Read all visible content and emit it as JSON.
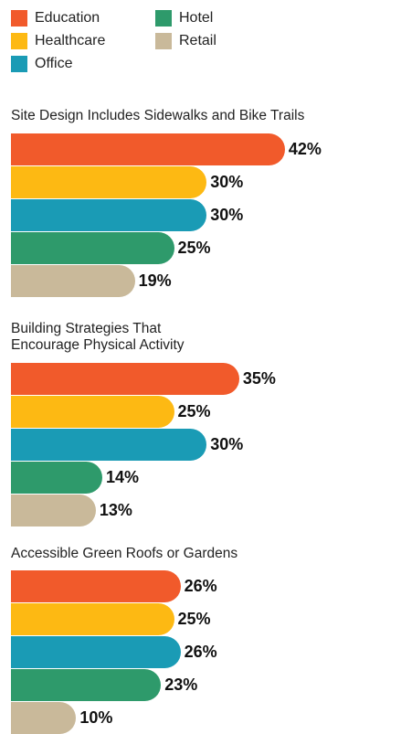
{
  "chart_data": {
    "type": "bar",
    "orientation": "horizontal",
    "categories": [
      "Site Design Includes Sidewalks and Bike Trails",
      "Building Strategies That Encourage Physical Activity",
      "Accessible Green Roofs or Gardens"
    ],
    "series": [
      {
        "name": "Education",
        "color": "#f15a2b",
        "values": [
          42,
          35,
          26
        ],
        "value_labels": [
          "42%",
          "35%",
          "26%"
        ]
      },
      {
        "name": "Healthcare",
        "color": "#fdb913",
        "values": [
          30,
          25,
          25
        ],
        "value_labels": [
          "30%",
          "25%",
          "25%"
        ]
      },
      {
        "name": "Office",
        "color": "#1a9bb5",
        "values": [
          30,
          30,
          26
        ],
        "value_labels": [
          "30%",
          "30%",
          "26%"
        ]
      },
      {
        "name": "Hotel",
        "color": "#2e9a6b",
        "values": [
          25,
          14,
          23
        ],
        "value_labels": [
          "25%",
          "14%",
          "23%"
        ]
      },
      {
        "name": "Retail",
        "color": "#c9b99a",
        "values": [
          19,
          13,
          10
        ],
        "value_labels": [
          "19%",
          "13%",
          "10%"
        ]
      }
    ]
  }
}
